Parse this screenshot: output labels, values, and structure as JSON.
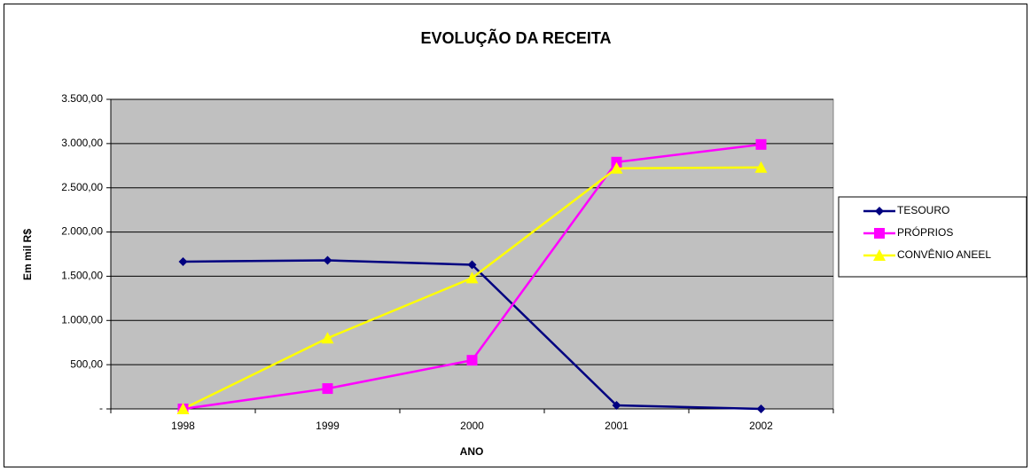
{
  "chart_data": {
    "type": "line",
    "title": "EVOLUÇÃO DA RECEITA",
    "x_label": "ANO",
    "y_label": "Em mil R$",
    "categories": [
      "1998",
      "1999",
      "2000",
      "2001",
      "2002"
    ],
    "series": [
      {
        "name": "TESOURO",
        "color": "#000080",
        "marker": "diamond",
        "values": [
          1665,
          1680,
          1630,
          40,
          0
        ]
      },
      {
        "name": "PRÓPRIOS",
        "color": "#ff00ff",
        "marker": "square",
        "values": [
          0,
          230,
          550,
          2790,
          2990
        ]
      },
      {
        "name": "CONVÊNIO ANEEL",
        "color": "#ffff00",
        "marker": "triangle",
        "values": [
          0,
          800,
          1480,
          2720,
          2730
        ]
      }
    ],
    "ylim": [
      0,
      3500
    ],
    "yticks": [
      {
        "value": 0,
        "label": "-"
      },
      {
        "value": 500,
        "label": "500,00"
      },
      {
        "value": 1000,
        "label": "1.000,00"
      },
      {
        "value": 1500,
        "label": "1.500,00"
      },
      {
        "value": 2000,
        "label": "2.000,00"
      },
      {
        "value": 2500,
        "label": "2.500,00"
      },
      {
        "value": 3000,
        "label": "3.000,00"
      },
      {
        "value": 3500,
        "label": "3.500,00"
      }
    ],
    "grid": true,
    "plot_background": "#c0c0c0",
    "legend": "right"
  }
}
